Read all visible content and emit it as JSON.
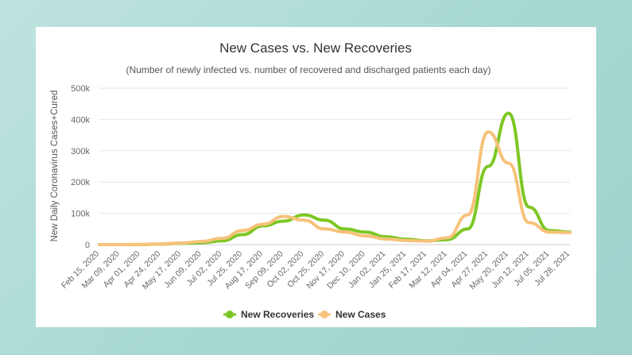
{
  "chart_data": {
    "type": "line",
    "title": "New Cases vs. New Recoveries",
    "subtitle": "(Number of newly infected vs. number of recovered and discharged patients each day)",
    "ylabel": "New Daily Coronavirus Cases+Cured",
    "xlabel": "",
    "ylim": [
      0,
      500000
    ],
    "y_ticks": [
      "0",
      "100k",
      "200k",
      "300k",
      "400k",
      "500k"
    ],
    "y_tick_values": [
      0,
      100000,
      200000,
      300000,
      400000,
      500000
    ],
    "x_categories": [
      "Feb 15, 2020",
      "Mar 09, 2020",
      "Apr 01, 2020",
      "Apr 24, 2020",
      "May 17, 2020",
      "Jun 09, 2020",
      "Jul 02, 2020",
      "Jul 25, 2020",
      "Aug 17, 2020",
      "Sep 09, 2020",
      "Oct 02, 2020",
      "Oct 25, 2020",
      "Nov 17, 2020",
      "Dec 10, 2020",
      "Jan 02, 2021",
      "Jan 25, 2021",
      "Feb 17, 2021",
      "Mar 12, 2021",
      "Apr 04, 2021",
      "Apr 27, 2021",
      "May 20, 2021",
      "Jun 12, 2021",
      "Jul 05, 2021",
      "Jul 28, 2021"
    ],
    "grid": true,
    "legend_position": "bottom-center",
    "series": [
      {
        "name": "New Recoveries",
        "color": "#7dc724",
        "points": [
          [
            "Feb 15, 2020",
            0
          ],
          [
            "Mar 09, 2020",
            0
          ],
          [
            "Apr 01, 2020",
            200
          ],
          [
            "Apr 24, 2020",
            1500
          ],
          [
            "May 17, 2020",
            4000
          ],
          [
            "Jun 09, 2020",
            6000
          ],
          [
            "Jul 02, 2020",
            12000
          ],
          [
            "Jul 25, 2020",
            32000
          ],
          [
            "Aug 17, 2020",
            60000
          ],
          [
            "Sep 09, 2020",
            75000
          ],
          [
            "Oct 02, 2020",
            95000
          ],
          [
            "Oct 25, 2020",
            78000
          ],
          [
            "Nov 17, 2020",
            50000
          ],
          [
            "Dec 10, 2020",
            40000
          ],
          [
            "Jan 02, 2021",
            25000
          ],
          [
            "Jan 25, 2021",
            17000
          ],
          [
            "Feb 17, 2021",
            12000
          ],
          [
            "Mar 12, 2021",
            16000
          ],
          [
            "Apr 04, 2021",
            50000
          ],
          [
            "Apr 27, 2021",
            250000
          ],
          [
            "May 20, 2021",
            420000
          ],
          [
            "Jun 12, 2021",
            120000
          ],
          [
            "Jul 05, 2021",
            45000
          ],
          [
            "Jul 28, 2021",
            40000
          ]
        ]
      },
      {
        "name": "New Cases",
        "color": "#f7c27a",
        "points": [
          [
            "Feb 15, 2020",
            0
          ],
          [
            "Mar 09, 2020",
            0
          ],
          [
            "Apr 01, 2020",
            500
          ],
          [
            "Apr 24, 2020",
            2000
          ],
          [
            "May 17, 2020",
            5000
          ],
          [
            "Jun 09, 2020",
            10000
          ],
          [
            "Jul 02, 2020",
            20000
          ],
          [
            "Jul 25, 2020",
            45000
          ],
          [
            "Aug 17, 2020",
            65000
          ],
          [
            "Sep 09, 2020",
            90000
          ],
          [
            "Oct 02, 2020",
            78000
          ],
          [
            "Oct 25, 2020",
            50000
          ],
          [
            "Nov 17, 2020",
            40000
          ],
          [
            "Dec 10, 2020",
            28000
          ],
          [
            "Jan 02, 2021",
            18000
          ],
          [
            "Jan 25, 2021",
            13000
          ],
          [
            "Feb 17, 2021",
            11000
          ],
          [
            "Mar 12, 2021",
            22000
          ],
          [
            "Apr 04, 2021",
            95000
          ],
          [
            "Apr 27, 2021",
            360000
          ],
          [
            "May 20, 2021",
            260000
          ],
          [
            "Jun 12, 2021",
            70000
          ],
          [
            "Jul 05, 2021",
            40000
          ],
          [
            "Jul 28, 2021",
            38000
          ]
        ]
      }
    ]
  }
}
